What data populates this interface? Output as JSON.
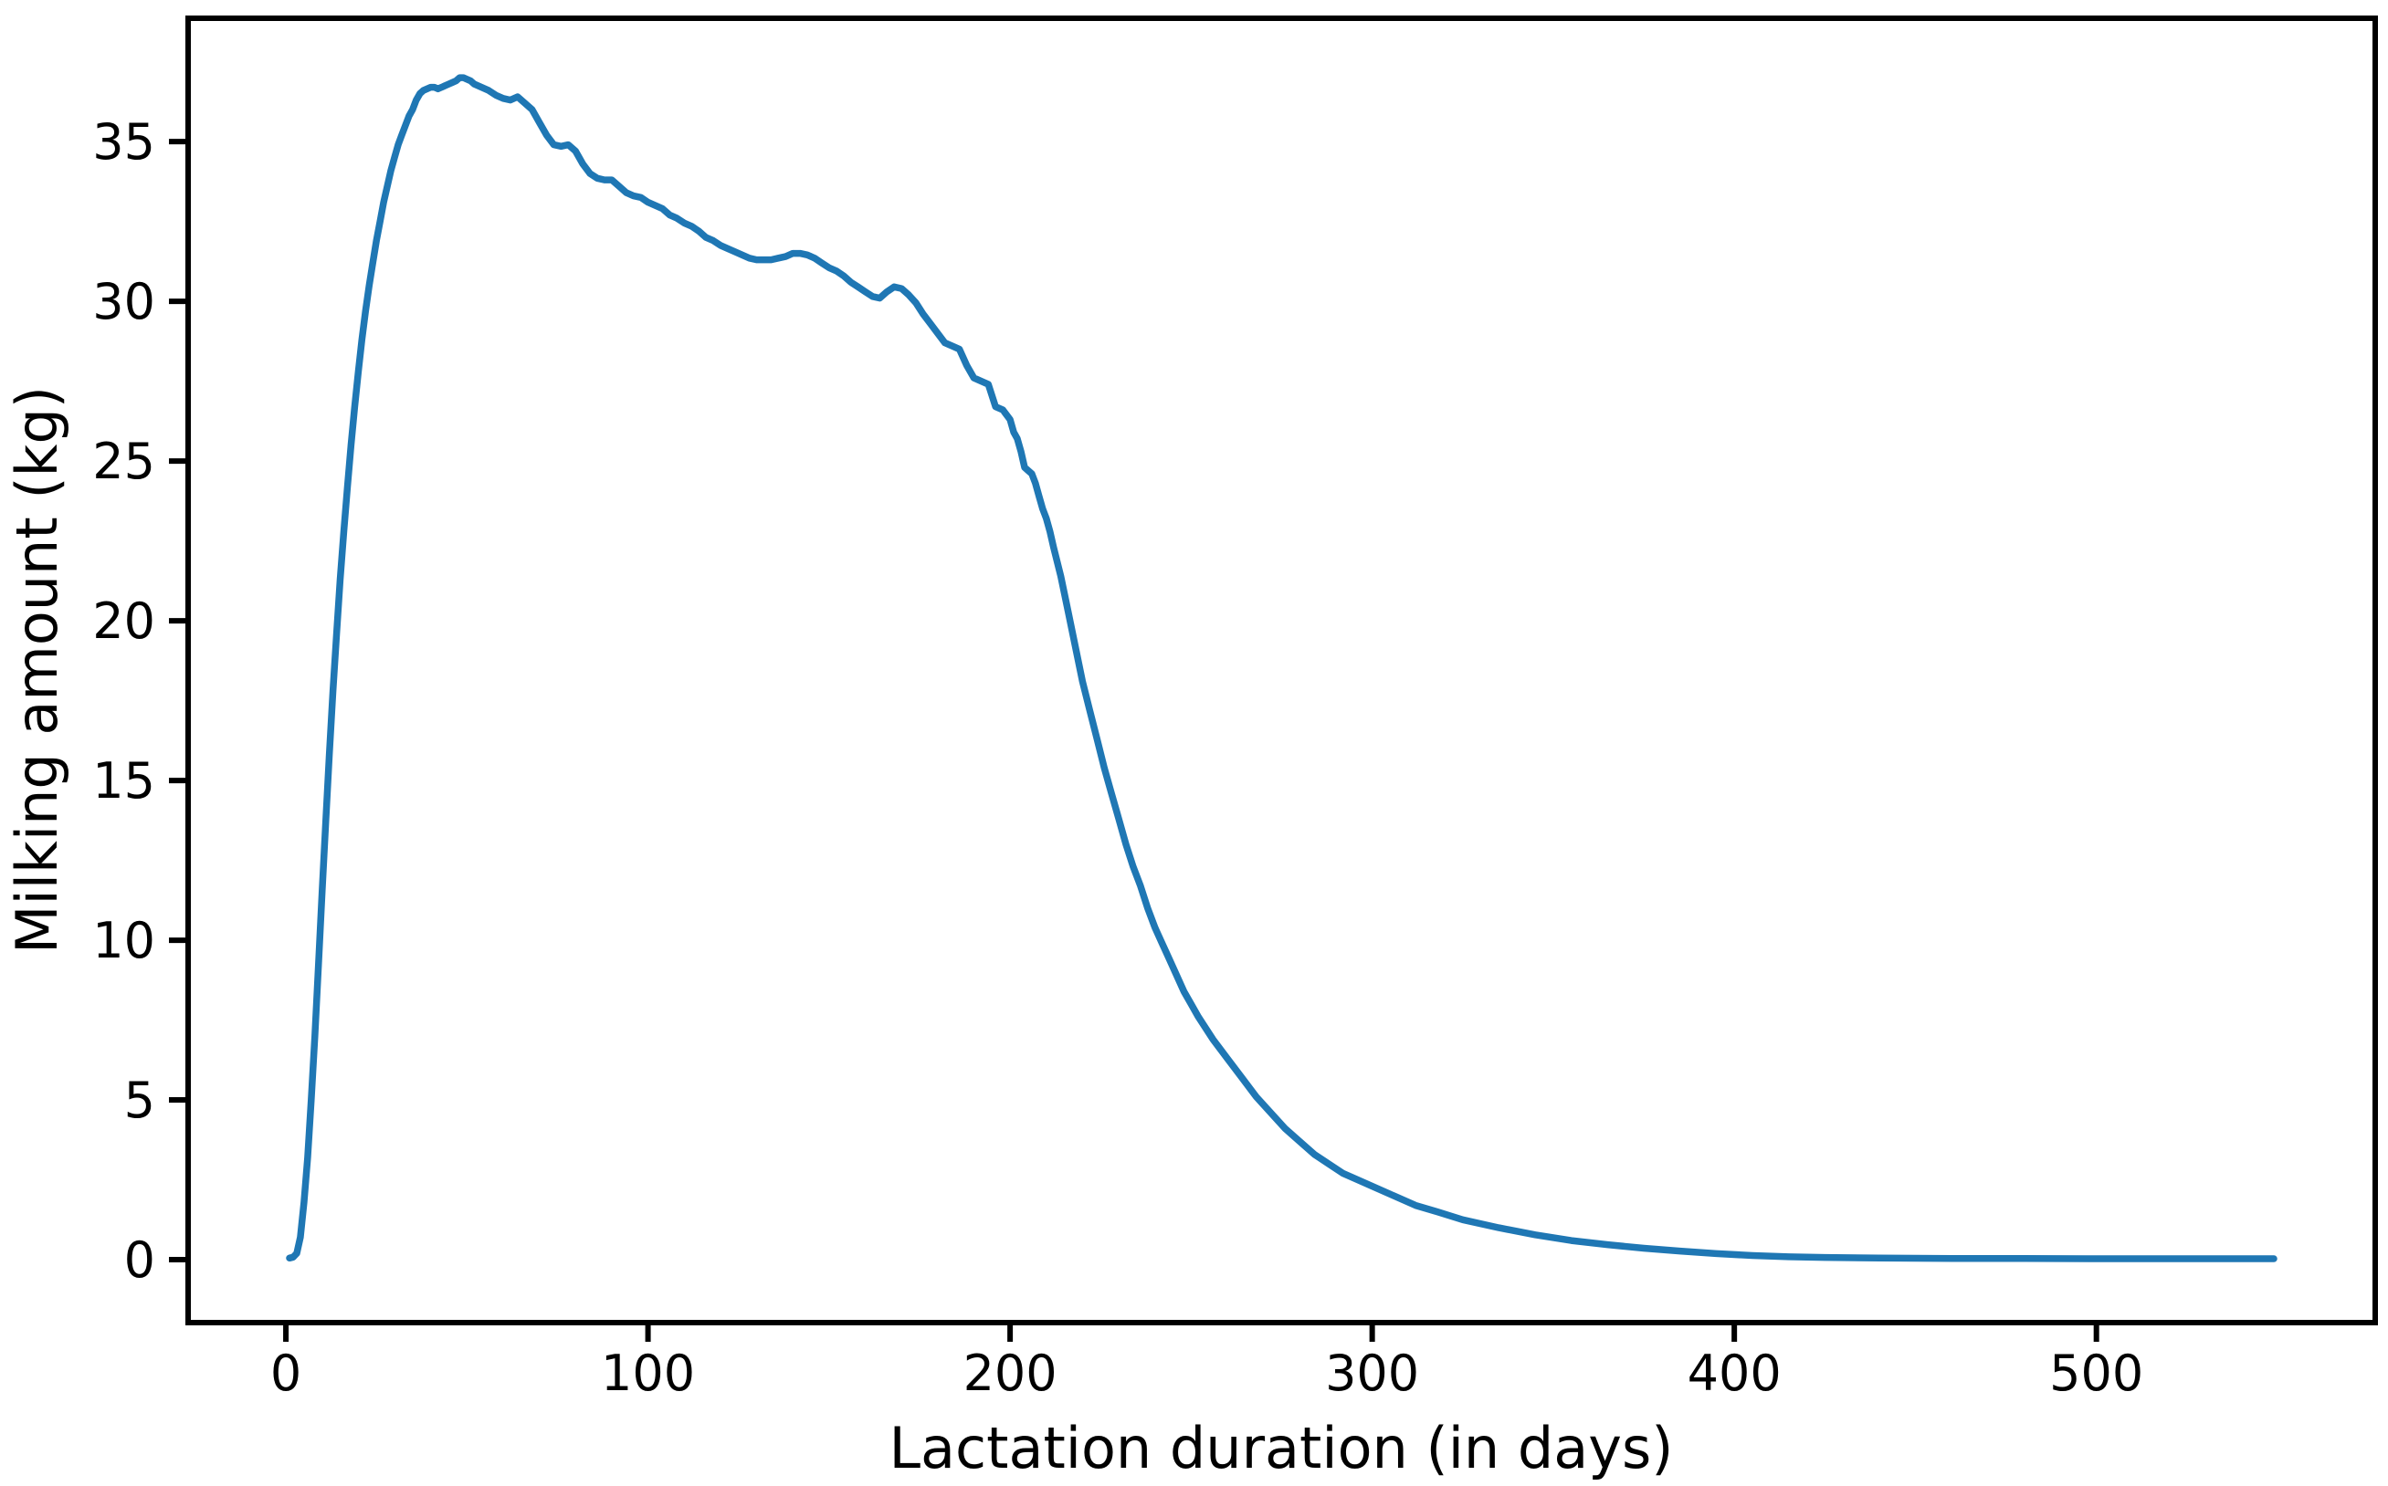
{
  "chart_data": {
    "type": "line",
    "title": "",
    "xlabel": "Lactation duration (in days)",
    "ylabel": "Milking amount (kg)",
    "xlim": [
      -27,
      577
    ],
    "ylim": [
      -1.97,
      38.86
    ],
    "xticks": [
      0,
      100,
      200,
      300,
      400,
      500
    ],
    "yticks": [
      0,
      5,
      10,
      15,
      20,
      25,
      30,
      35
    ],
    "grid": false,
    "legend": "none",
    "line_color": "#1f77b4",
    "line_width": 7.5,
    "axis_color": "#000000",
    "background_color": "#ffffff",
    "series": [
      {
        "name": "milking-amount",
        "points": [
          [
            1,
            0.05
          ],
          [
            2,
            0.08
          ],
          [
            3,
            0.2
          ],
          [
            4,
            0.7
          ],
          [
            5,
            1.8
          ],
          [
            6,
            3.2
          ],
          [
            7,
            5.0
          ],
          [
            8,
            7.0
          ],
          [
            9,
            9.2
          ],
          [
            10,
            11.5
          ],
          [
            11,
            13.7
          ],
          [
            12,
            15.8
          ],
          [
            13,
            17.8
          ],
          [
            14,
            19.6
          ],
          [
            15,
            21.3
          ],
          [
            16,
            22.8
          ],
          [
            17,
            24.2
          ],
          [
            18,
            25.5
          ],
          [
            19,
            26.7
          ],
          [
            20,
            27.8
          ],
          [
            21,
            28.8
          ],
          [
            22,
            29.7
          ],
          [
            23,
            30.5
          ],
          [
            24,
            31.2
          ],
          [
            25,
            31.9
          ],
          [
            26,
            32.5
          ],
          [
            27,
            33.1
          ],
          [
            28,
            33.6
          ],
          [
            29,
            34.1
          ],
          [
            30,
            34.5
          ],
          [
            31,
            34.9
          ],
          [
            32,
            35.2
          ],
          [
            33,
            35.5
          ],
          [
            34,
            35.8
          ],
          [
            35,
            36.0
          ],
          [
            36,
            36.3
          ],
          [
            37,
            36.5
          ],
          [
            38,
            36.6
          ],
          [
            39,
            36.65
          ],
          [
            40,
            36.7
          ],
          [
            41,
            36.7
          ],
          [
            42,
            36.65
          ],
          [
            43,
            36.7
          ],
          [
            44,
            36.75
          ],
          [
            45,
            36.8
          ],
          [
            46,
            36.85
          ],
          [
            47,
            36.9
          ],
          [
            48,
            37.0
          ],
          [
            49,
            37.0
          ],
          [
            50,
            36.95
          ],
          [
            51,
            36.9
          ],
          [
            52,
            36.8
          ],
          [
            54,
            36.7
          ],
          [
            56,
            36.6
          ],
          [
            58,
            36.45
          ],
          [
            60,
            36.35
          ],
          [
            62,
            36.3
          ],
          [
            64,
            36.4
          ],
          [
            66,
            36.2
          ],
          [
            68,
            36.0
          ],
          [
            70,
            35.6
          ],
          [
            72,
            35.2
          ],
          [
            74,
            34.9
          ],
          [
            76,
            34.85
          ],
          [
            78,
            34.9
          ],
          [
            80,
            34.7
          ],
          [
            82,
            34.3
          ],
          [
            84,
            34.0
          ],
          [
            86,
            33.85
          ],
          [
            88,
            33.8
          ],
          [
            90,
            33.8
          ],
          [
            92,
            33.6
          ],
          [
            94,
            33.4
          ],
          [
            96,
            33.3
          ],
          [
            98,
            33.25
          ],
          [
            100,
            33.1
          ],
          [
            102,
            33.0
          ],
          [
            104,
            32.9
          ],
          [
            106,
            32.7
          ],
          [
            108,
            32.6
          ],
          [
            110,
            32.45
          ],
          [
            112,
            32.35
          ],
          [
            114,
            32.2
          ],
          [
            116,
            32.0
          ],
          [
            118,
            31.9
          ],
          [
            120,
            31.75
          ],
          [
            122,
            31.65
          ],
          [
            124,
            31.55
          ],
          [
            126,
            31.45
          ],
          [
            128,
            31.35
          ],
          [
            130,
            31.3
          ],
          [
            132,
            31.3
          ],
          [
            134,
            31.3
          ],
          [
            136,
            31.35
          ],
          [
            138,
            31.4
          ],
          [
            140,
            31.5
          ],
          [
            142,
            31.5
          ],
          [
            144,
            31.45
          ],
          [
            146,
            31.35
          ],
          [
            148,
            31.2
          ],
          [
            150,
            31.05
          ],
          [
            152,
            30.95
          ],
          [
            154,
            30.8
          ],
          [
            156,
            30.6
          ],
          [
            158,
            30.45
          ],
          [
            160,
            30.3
          ],
          [
            162,
            30.15
          ],
          [
            164,
            30.1
          ],
          [
            166,
            30.3
          ],
          [
            168,
            30.45
          ],
          [
            170,
            30.4
          ],
          [
            172,
            30.2
          ],
          [
            174,
            29.95
          ],
          [
            176,
            29.6
          ],
          [
            178,
            29.3
          ],
          [
            180,
            29.0
          ],
          [
            182,
            28.7
          ],
          [
            184,
            28.6
          ],
          [
            186,
            28.5
          ],
          [
            188,
            28.0
          ],
          [
            190,
            27.6
          ],
          [
            192,
            27.5
          ],
          [
            194,
            27.4
          ],
          [
            196,
            26.7
          ],
          [
            198,
            26.6
          ],
          [
            200,
            26.3
          ],
          [
            201,
            25.9
          ],
          [
            202,
            25.7
          ],
          [
            203,
            25.3
          ],
          [
            204,
            24.8
          ],
          [
            205,
            24.7
          ],
          [
            206,
            24.6
          ],
          [
            207,
            24.3
          ],
          [
            208,
            23.9
          ],
          [
            209,
            23.5
          ],
          [
            210,
            23.2
          ],
          [
            211,
            22.8
          ],
          [
            212,
            22.3
          ],
          [
            214,
            21.4
          ],
          [
            216,
            20.3
          ],
          [
            218,
            19.2
          ],
          [
            220,
            18.1
          ],
          [
            222,
            17.2
          ],
          [
            224,
            16.3
          ],
          [
            226,
            15.4
          ],
          [
            228,
            14.6
          ],
          [
            230,
            13.8
          ],
          [
            232,
            13.0
          ],
          [
            234,
            12.3
          ],
          [
            236,
            11.7
          ],
          [
            238,
            11.0
          ],
          [
            240,
            10.4
          ],
          [
            242,
            9.9
          ],
          [
            244,
            9.4
          ],
          [
            246,
            8.9
          ],
          [
            248,
            8.4
          ],
          [
            250,
            8.0
          ],
          [
            252,
            7.6
          ],
          [
            256,
            6.9
          ],
          [
            260,
            6.3
          ],
          [
            264,
            5.7
          ],
          [
            268,
            5.1
          ],
          [
            272,
            4.6
          ],
          [
            276,
            4.1
          ],
          [
            280,
            3.7
          ],
          [
            284,
            3.3
          ],
          [
            288,
            3.0
          ],
          [
            292,
            2.7
          ],
          [
            296,
            2.5
          ],
          [
            300,
            2.3
          ],
          [
            306,
            2.0
          ],
          [
            312,
            1.7
          ],
          [
            318,
            1.5
          ],
          [
            325,
            1.25
          ],
          [
            335,
            1.0
          ],
          [
            345,
            0.78
          ],
          [
            355,
            0.6
          ],
          [
            365,
            0.47
          ],
          [
            375,
            0.36
          ],
          [
            385,
            0.27
          ],
          [
            395,
            0.19
          ],
          [
            405,
            0.13
          ],
          [
            415,
            0.09
          ],
          [
            425,
            0.07
          ],
          [
            440,
            0.05
          ],
          [
            460,
            0.04
          ],
          [
            480,
            0.035
          ],
          [
            500,
            0.03
          ],
          [
            520,
            0.03
          ],
          [
            549,
            0.03
          ]
        ]
      }
    ]
  }
}
